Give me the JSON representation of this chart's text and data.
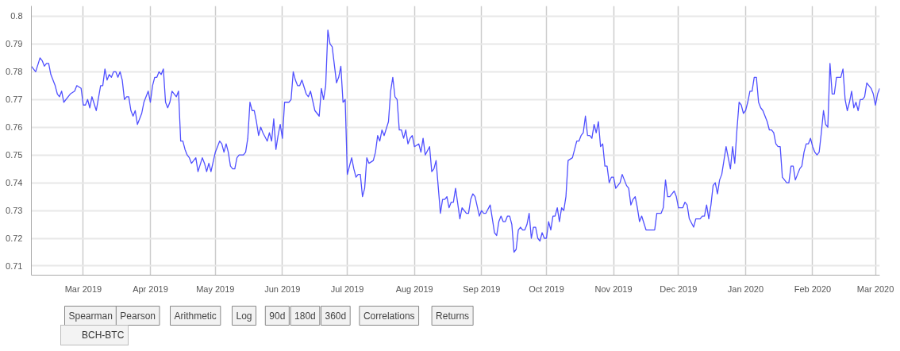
{
  "chart_data": {
    "type": "line",
    "x": [
      "2019-02-05",
      "2019-02-07",
      "2019-02-09",
      "2019-02-10",
      "2019-02-11",
      "2019-02-12",
      "2019-02-13",
      "2019-02-14",
      "2019-02-16",
      "2019-02-17",
      "2019-02-18",
      "2019-02-19",
      "2019-02-20",
      "2019-02-23",
      "2019-02-25",
      "2019-02-26",
      "2019-02-28",
      "2019-03-01",
      "2019-03-02",
      "2019-03-03",
      "2019-03-04",
      "2019-03-05",
      "2019-03-07",
      "2019-03-09",
      "2019-03-10",
      "2019-03-11",
      "2019-03-12",
      "2019-03-13",
      "2019-03-14",
      "2019-03-15",
      "2019-03-16",
      "2019-03-17",
      "2019-03-18",
      "2019-03-19",
      "2019-03-20",
      "2019-03-21",
      "2019-03-22",
      "2019-03-23",
      "2019-03-24",
      "2019-03-25",
      "2019-03-26",
      "2019-03-28",
      "2019-03-29",
      "2019-03-31",
      "2019-04-01",
      "2019-04-02",
      "2019-04-03",
      "2019-04-04",
      "2019-04-05",
      "2019-04-06",
      "2019-04-07",
      "2019-04-08",
      "2019-04-09",
      "2019-04-10",
      "2019-04-11",
      "2019-04-12",
      "2019-04-13",
      "2019-04-14",
      "2019-04-15",
      "2019-04-16",
      "2019-04-17",
      "2019-04-18",
      "2019-04-19",
      "2019-04-20",
      "2019-04-22",
      "2019-04-23",
      "2019-04-25",
      "2019-04-26",
      "2019-04-27",
      "2019-04-28",
      "2019-04-29",
      "2019-05-01",
      "2019-05-03",
      "2019-05-04",
      "2019-05-05",
      "2019-05-06",
      "2019-05-07",
      "2019-05-08",
      "2019-05-09",
      "2019-05-10",
      "2019-05-11",
      "2019-05-12",
      "2019-05-14",
      "2019-05-15",
      "2019-05-16",
      "2019-05-17",
      "2019-05-18",
      "2019-05-19",
      "2019-05-20",
      "2019-05-21",
      "2019-05-22",
      "2019-05-23",
      "2019-05-25",
      "2019-05-26",
      "2019-05-27",
      "2019-05-28",
      "2019-05-29",
      "2019-05-30",
      "2019-05-31",
      "2019-06-01",
      "2019-06-02",
      "2019-06-04",
      "2019-06-05",
      "2019-06-06",
      "2019-06-07",
      "2019-06-08",
      "2019-06-09",
      "2019-06-10",
      "2019-06-12",
      "2019-06-13",
      "2019-06-14",
      "2019-06-16",
      "2019-06-18",
      "2019-06-19",
      "2019-06-20",
      "2019-06-21",
      "2019-06-22",
      "2019-06-23",
      "2019-06-24",
      "2019-06-26",
      "2019-06-27",
      "2019-06-28",
      "2019-06-29",
      "2019-06-30",
      "2019-07-01",
      "2019-07-02",
      "2019-07-03",
      "2019-07-04",
      "2019-07-05",
      "2019-07-06",
      "2019-07-07",
      "2019-07-08",
      "2019-07-09",
      "2019-07-10",
      "2019-07-11",
      "2019-07-13",
      "2019-07-14",
      "2019-07-15",
      "2019-07-16",
      "2019-07-17",
      "2019-07-18",
      "2019-07-20",
      "2019-07-21",
      "2019-07-22",
      "2019-07-23",
      "2019-07-24",
      "2019-07-25",
      "2019-07-26",
      "2019-07-27",
      "2019-07-28",
      "2019-07-29",
      "2019-07-30",
      "2019-07-31",
      "2019-08-01",
      "2019-08-03",
      "2019-08-04",
      "2019-08-05",
      "2019-08-06",
      "2019-08-08",
      "2019-08-09",
      "2019-08-10",
      "2019-08-11",
      "2019-08-13",
      "2019-08-14",
      "2019-08-15",
      "2019-08-16",
      "2019-08-17",
      "2019-08-18",
      "2019-08-19",
      "2019-08-20",
      "2019-08-22",
      "2019-08-23",
      "2019-08-25",
      "2019-08-26",
      "2019-08-27",
      "2019-08-28",
      "2019-08-29",
      "2019-08-31",
      "2019-09-01",
      "2019-09-02",
      "2019-09-03",
      "2019-09-05",
      "2019-09-07",
      "2019-09-08",
      "2019-09-09",
      "2019-09-10",
      "2019-09-11",
      "2019-09-12",
      "2019-09-13",
      "2019-09-14",
      "2019-09-15",
      "2019-09-16",
      "2019-09-17",
      "2019-09-18",
      "2019-09-19",
      "2019-09-20",
      "2019-09-21",
      "2019-09-22",
      "2019-09-23",
      "2019-09-24",
      "2019-09-25",
      "2019-09-26",
      "2019-09-27",
      "2019-09-28",
      "2019-09-29",
      "2019-09-30",
      "2019-10-01",
      "2019-10-02",
      "2019-10-03",
      "2019-10-04",
      "2019-10-05",
      "2019-10-06",
      "2019-10-07",
      "2019-10-08",
      "2019-10-09",
      "2019-10-10",
      "2019-10-11",
      "2019-10-13",
      "2019-10-14",
      "2019-10-15",
      "2019-10-16",
      "2019-10-17",
      "2019-10-18",
      "2019-10-19",
      "2019-10-20",
      "2019-10-21",
      "2019-10-22",
      "2019-10-23",
      "2019-10-24",
      "2019-10-25",
      "2019-10-26",
      "2019-10-27",
      "2019-10-28",
      "2019-10-29",
      "2019-10-30",
      "2019-10-31",
      "2019-11-01",
      "2019-11-02",
      "2019-11-03",
      "2019-11-04",
      "2019-11-05",
      "2019-11-06",
      "2019-11-07",
      "2019-11-08",
      "2019-11-09",
      "2019-11-10",
      "2019-11-11",
      "2019-11-12",
      "2019-11-13",
      "2019-11-14",
      "2019-11-16",
      "2019-11-20",
      "2019-11-21",
      "2019-11-23",
      "2019-11-24",
      "2019-11-25",
      "2019-11-26",
      "2019-11-27",
      "2019-11-28",
      "2019-11-29",
      "2019-11-30",
      "2019-12-01",
      "2019-12-03",
      "2019-12-04",
      "2019-12-05",
      "2019-12-06",
      "2019-12-08",
      "2019-12-09",
      "2019-12-10",
      "2019-12-11",
      "2019-12-12",
      "2019-12-13",
      "2019-12-14",
      "2019-12-15",
      "2019-12-16",
      "2019-12-17",
      "2019-12-18",
      "2019-12-19",
      "2019-12-20",
      "2019-12-21",
      "2019-12-22",
      "2019-12-23",
      "2019-12-24",
      "2019-12-25",
      "2019-12-26",
      "2019-12-27",
      "2019-12-28",
      "2019-12-29",
      "2019-12-30",
      "2019-12-31",
      "2020-01-01",
      "2020-01-02",
      "2020-01-03",
      "2020-01-04",
      "2020-01-05",
      "2020-01-06",
      "2020-01-07",
      "2020-01-08",
      "2020-01-09",
      "2020-01-10",
      "2020-01-11",
      "2020-01-12",
      "2020-01-13",
      "2020-01-14",
      "2020-01-15",
      "2020-01-16",
      "2020-01-17",
      "2020-01-18",
      "2020-01-19",
      "2020-01-20",
      "2020-01-21",
      "2020-01-22",
      "2020-01-23",
      "2020-01-24",
      "2020-01-25",
      "2020-01-26",
      "2020-01-27",
      "2020-01-28",
      "2020-01-29",
      "2020-01-30",
      "2020-01-31",
      "2020-02-01",
      "2020-02-02",
      "2020-02-03",
      "2020-02-04",
      "2020-02-05",
      "2020-02-06",
      "2020-02-07",
      "2020-02-08",
      "2020-02-09",
      "2020-02-10",
      "2020-02-11",
      "2020-02-12",
      "2020-02-13",
      "2020-02-14",
      "2020-02-15",
      "2020-02-16",
      "2020-02-17",
      "2020-02-18",
      "2020-02-19",
      "2020-02-20",
      "2020-02-21",
      "2020-02-22",
      "2020-02-23",
      "2020-02-24",
      "2020-02-25",
      "2020-02-26",
      "2020-02-27",
      "2020-02-28",
      "2020-02-29",
      "2020-03-01",
      "2020-03-02",
      "2020-03-03"
    ],
    "series": [
      {
        "name": "BCH-BTC",
        "color": "#5050ff",
        "values": [
          0.782,
          0.78,
          0.785,
          0.784,
          0.782,
          0.783,
          0.783,
          0.779,
          0.775,
          0.772,
          0.771,
          0.773,
          0.769,
          0.772,
          0.773,
          0.775,
          0.774,
          0.768,
          0.768,
          0.77,
          0.767,
          0.771,
          0.766,
          0.775,
          0.775,
          0.781,
          0.777,
          0.779,
          0.778,
          0.78,
          0.78,
          0.778,
          0.78,
          0.777,
          0.77,
          0.771,
          0.771,
          0.766,
          0.764,
          0.766,
          0.761,
          0.765,
          0.769,
          0.773,
          0.769,
          0.775,
          0.778,
          0.778,
          0.78,
          0.779,
          0.781,
          0.769,
          0.767,
          0.769,
          0.773,
          0.772,
          0.771,
          0.773,
          0.755,
          0.755,
          0.752,
          0.75,
          0.749,
          0.747,
          0.749,
          0.744,
          0.749,
          0.747,
          0.744,
          0.747,
          0.744,
          0.751,
          0.755,
          0.754,
          0.751,
          0.754,
          0.751,
          0.746,
          0.745,
          0.745,
          0.749,
          0.75,
          0.75,
          0.751,
          0.756,
          0.769,
          0.766,
          0.766,
          0.762,
          0.757,
          0.76,
          0.758,
          0.755,
          0.758,
          0.755,
          0.763,
          0.752,
          0.757,
          0.761,
          0.756,
          0.769,
          0.769,
          0.77,
          0.78,
          0.777,
          0.775,
          0.775,
          0.777,
          0.772,
          0.771,
          0.773,
          0.766,
          0.764,
          0.774,
          0.77,
          0.775,
          0.795,
          0.79,
          0.789,
          0.776,
          0.778,
          0.782,
          0.769,
          0.77,
          0.743,
          0.746,
          0.749,
          0.745,
          0.742,
          0.743,
          0.743,
          0.735,
          0.738,
          0.749,
          0.747,
          0.748,
          0.751,
          0.757,
          0.755,
          0.759,
          0.757,
          0.762,
          0.773,
          0.778,
          0.771,
          0.77,
          0.759,
          0.759,
          0.756,
          0.759,
          0.754,
          0.756,
          0.757,
          0.753,
          0.754,
          0.751,
          0.756,
          0.75,
          0.753,
          0.744,
          0.745,
          0.748,
          0.729,
          0.734,
          0.734,
          0.735,
          0.731,
          0.733,
          0.733,
          0.738,
          0.727,
          0.731,
          0.729,
          0.729,
          0.734,
          0.736,
          0.735,
          0.728,
          0.73,
          0.729,
          0.729,
          0.732,
          0.722,
          0.721,
          0.726,
          0.728,
          0.726,
          0.726,
          0.728,
          0.728,
          0.725,
          0.715,
          0.716,
          0.723,
          0.724,
          0.723,
          0.723,
          0.725,
          0.729,
          0.72,
          0.724,
          0.724,
          0.72,
          0.719,
          0.722,
          0.72,
          0.72,
          0.726,
          0.723,
          0.728,
          0.728,
          0.731,
          0.726,
          0.731,
          0.73,
          0.735,
          0.748,
          0.749,
          0.752,
          0.755,
          0.755,
          0.757,
          0.758,
          0.764,
          0.757,
          0.757,
          0.756,
          0.761,
          0.758,
          0.762,
          0.753,
          0.754,
          0.746,
          0.746,
          0.74,
          0.742,
          0.742,
          0.738,
          0.739,
          0.74,
          0.743,
          0.741,
          0.739,
          0.738,
          0.732,
          0.734,
          0.735,
          0.731,
          0.726,
          0.728,
          0.723,
          0.723,
          0.729,
          0.729,
          0.731,
          0.741,
          0.735,
          0.735,
          0.736,
          0.737,
          0.735,
          0.731,
          0.731,
          0.733,
          0.732,
          0.727,
          0.724,
          0.727,
          0.727,
          0.727,
          0.728,
          0.728,
          0.732,
          0.727,
          0.732,
          0.739,
          0.74,
          0.736,
          0.741,
          0.743,
          0.748,
          0.753,
          0.749,
          0.745,
          0.753,
          0.747,
          0.759,
          0.769,
          0.768,
          0.765,
          0.766,
          0.769,
          0.773,
          0.773,
          0.778,
          0.778,
          0.769,
          0.767,
          0.766,
          0.764,
          0.762,
          0.759,
          0.759,
          0.758,
          0.754,
          0.753,
          0.753,
          0.742,
          0.741,
          0.74,
          0.74,
          0.746,
          0.746,
          0.741,
          0.743,
          0.745,
          0.746,
          0.751,
          0.754,
          0.754,
          0.756,
          0.753,
          0.751,
          0.75,
          0.751,
          0.758,
          0.766,
          0.761,
          0.76,
          0.783,
          0.772,
          0.772,
          0.778,
          0.778,
          0.778,
          0.781,
          0.77,
          0.766,
          0.769,
          0.773,
          0.767,
          0.769,
          0.766,
          0.77,
          0.77,
          0.771,
          0.776,
          0.775,
          0.774,
          0.772,
          0.768,
          0.772,
          0.774
        ]
      }
    ],
    "xlim": [
      "2019-02-05",
      "2020-03-03"
    ],
    "xticks": [
      {
        "value": "2019-03-01",
        "label": "Mar 2019"
      },
      {
        "value": "2019-04-01",
        "label": "Apr 2019"
      },
      {
        "value": "2019-05-01",
        "label": "May 2019"
      },
      {
        "value": "2019-06-01",
        "label": "Jun 2019"
      },
      {
        "value": "2019-07-01",
        "label": "Jul 2019"
      },
      {
        "value": "2019-08-01",
        "label": "Aug 2019"
      },
      {
        "value": "2019-09-01",
        "label": "Sep 2019"
      },
      {
        "value": "2019-10-01",
        "label": "Oct 2019"
      },
      {
        "value": "2019-11-01",
        "label": "Nov 2019"
      },
      {
        "value": "2019-12-01",
        "label": "Dec 2019"
      },
      {
        "value": "2020-01-01",
        "label": "Jan 2020"
      },
      {
        "value": "2020-02-01",
        "label": "Feb 2020"
      },
      {
        "value": "2020-03-01",
        "label": "Mar 2020"
      }
    ],
    "ylim": [
      0.7067,
      0.8037
    ],
    "yticks": [
      0.71,
      0.72,
      0.73,
      0.74,
      0.75,
      0.76,
      0.77,
      0.78,
      0.79,
      0.8
    ],
    "grid": true,
    "legend": "bottom left",
    "marker": "none",
    "line_style": "solid",
    "annotations": [
      "Spearman",
      "Pearson",
      "Arithmetic",
      "Log",
      "90d",
      "180d",
      "360d",
      "Correlations",
      "Returns"
    ]
  }
}
